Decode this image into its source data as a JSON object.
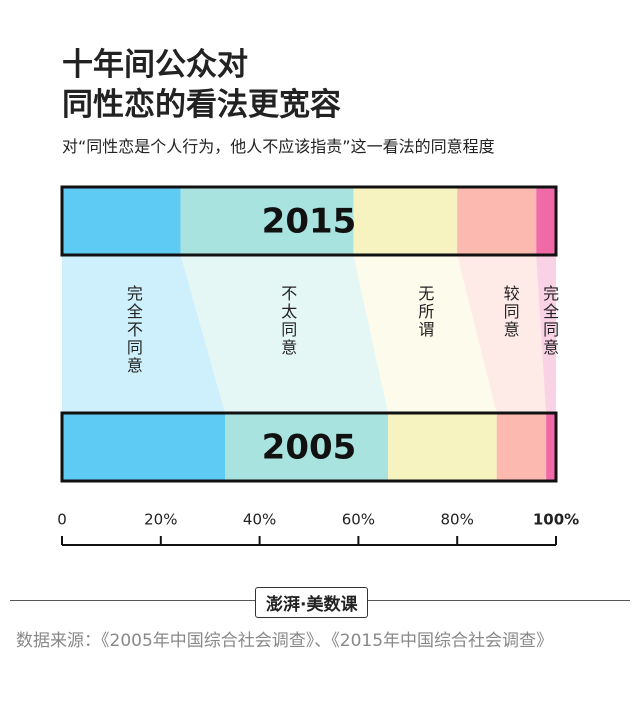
{
  "chart_data": {
    "type": "stacked-bar-100",
    "title": [
      "十年间公众对",
      "同性恋的看法更宽容"
    ],
    "subtitle": "对“同性恋是个人行为，他人不应该指责”这一看法的同意程度",
    "categories": [
      "2015",
      "2005"
    ],
    "series": [
      {
        "name": "完全不同意",
        "color": "#5ecbf5",
        "values": [
          24,
          33
        ]
      },
      {
        "name": "不太同意",
        "color": "#a9e3df",
        "values": [
          35,
          33
        ]
      },
      {
        "name": "无所谓",
        "color": "#f7f3c0",
        "values": [
          21,
          22
        ]
      },
      {
        "name": "较同意",
        "color": "#fbb9b0",
        "values": [
          16,
          10
        ]
      },
      {
        "name": "完全同意",
        "color": "#f06aa8",
        "values": [
          4,
          2
        ]
      }
    ],
    "xlim": [
      0,
      100
    ],
    "xticks": [
      0,
      {
        "value": 20,
        "label": "20%"
      },
      {
        "value": 40,
        "label": "40%"
      },
      {
        "value": 60,
        "label": "60%"
      },
      {
        "value": 80,
        "label": "80%"
      },
      {
        "value": 100,
        "label": "100%"
      }
    ],
    "logo": "澎湃·美数课",
    "source": "数据来源：《2005年中国综合社会调查》、《2015年中国综合社会调查》"
  }
}
